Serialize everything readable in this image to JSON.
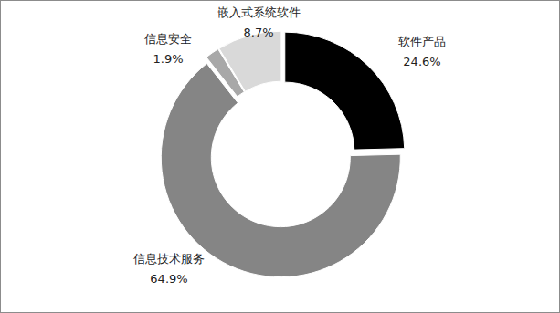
{
  "chart_data": {
    "type": "pie",
    "categories": [
      "软件产品",
      "信息技术服务",
      "信息安全",
      "嵌入式系统软件"
    ],
    "values": [
      24.6,
      64.9,
      1.9,
      8.7
    ],
    "value_labels": [
      "24.6%",
      "64.9%",
      "1.9%",
      "8.7%"
    ],
    "colors": [
      "#000000",
      "#858585",
      "#a8a8a8",
      "#d9d9d9"
    ],
    "data_labels": true
  }
}
